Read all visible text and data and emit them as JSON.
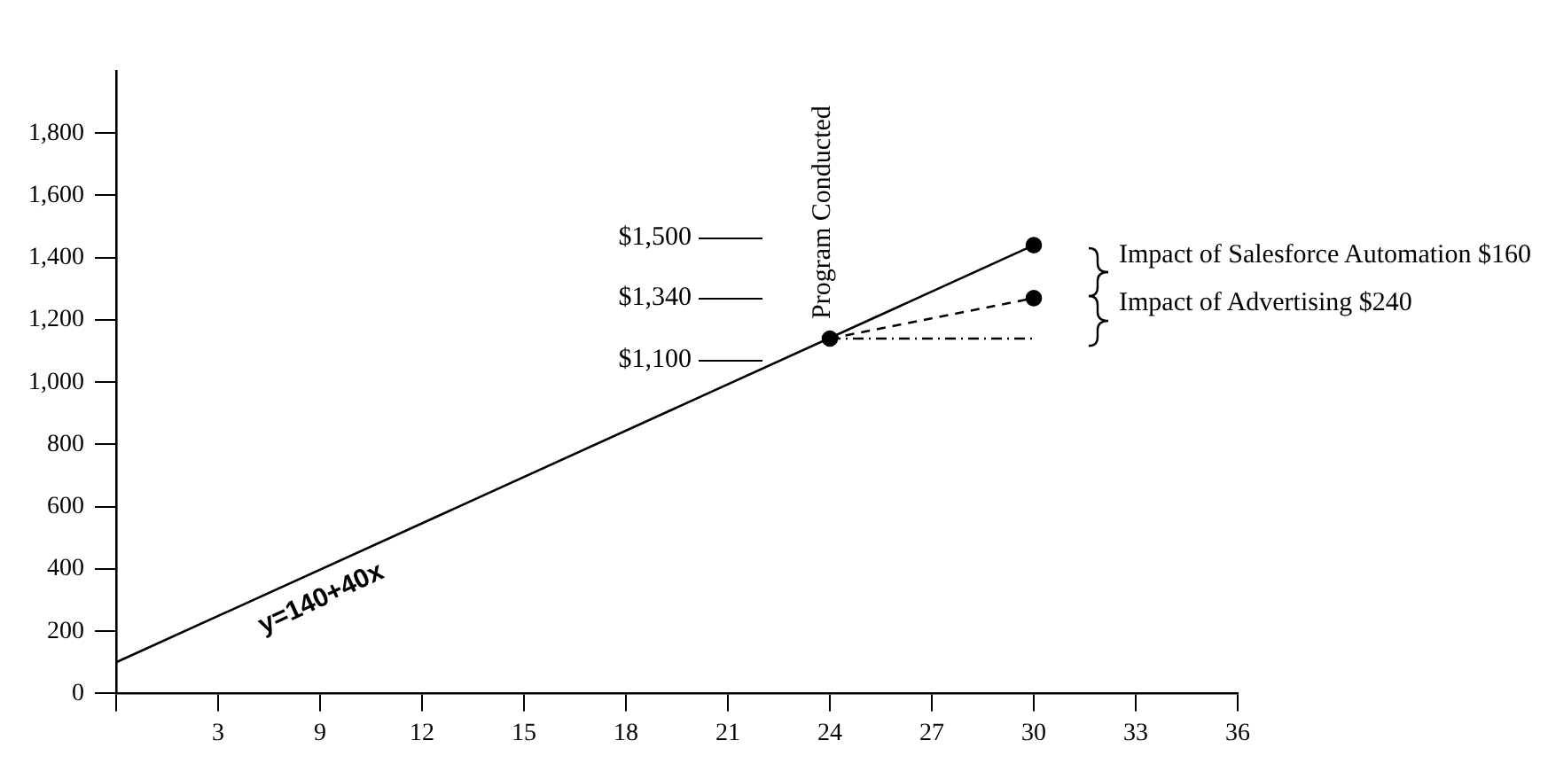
{
  "chart_data": {
    "type": "line",
    "categories": [
      null,
      "3",
      "9",
      "12",
      "15",
      "18",
      "21",
      "24",
      "27",
      "30",
      "33",
      "36"
    ],
    "ylim": [
      0,
      2000
    ],
    "yticks": [
      0,
      {
        "value": 200,
        "label": "200"
      },
      {
        "value": 400,
        "label": "400"
      },
      {
        "value": 600,
        "label": "600"
      },
      {
        "value": 800,
        "label": "800"
      },
      {
        "value": 1000,
        "label": "1,000"
      },
      {
        "value": 1200,
        "label": "1,200"
      },
      {
        "value": 1400,
        "label": "1,400"
      },
      {
        "value": 1600,
        "label": "1,600"
      },
      {
        "value": 1800,
        "label": "1,800"
      }
    ],
    "grid": false,
    "legend": false,
    "series": [
      {
        "type": "line",
        "color": "#000000",
        "marker": "none",
        "line_style": "solid",
        "values": [
          100,
          null,
          null,
          null,
          null,
          null,
          null,
          null,
          null,
          1440,
          null,
          null
        ]
      },
      {
        "type": "line",
        "color": "#000000",
        "marker": "none",
        "line_style": "dashed",
        "values": [
          null,
          null,
          null,
          null,
          null,
          null,
          null,
          1140,
          null,
          1270,
          null,
          null
        ]
      },
      {
        "type": "line",
        "color": "#000000",
        "marker": "none",
        "line_style": "dotted",
        "values": [
          null,
          null,
          null,
          null,
          null,
          null,
          null,
          1140,
          null,
          1140,
          null,
          null
        ]
      },
      {
        "type": "scatter",
        "color": "#000000",
        "marker": "circle",
        "x": [
          "24",
          "30",
          "30"
        ],
        "values": [
          1140,
          1440,
          1270
        ]
      }
    ],
    "annotations": [
      "Program Conducted",
      "$1,500",
      "$1,340",
      "$1,100",
      "Impact of Salesforce Automation $160",
      "Impact of Advertising $240",
      "y=140+40x"
    ]
  }
}
